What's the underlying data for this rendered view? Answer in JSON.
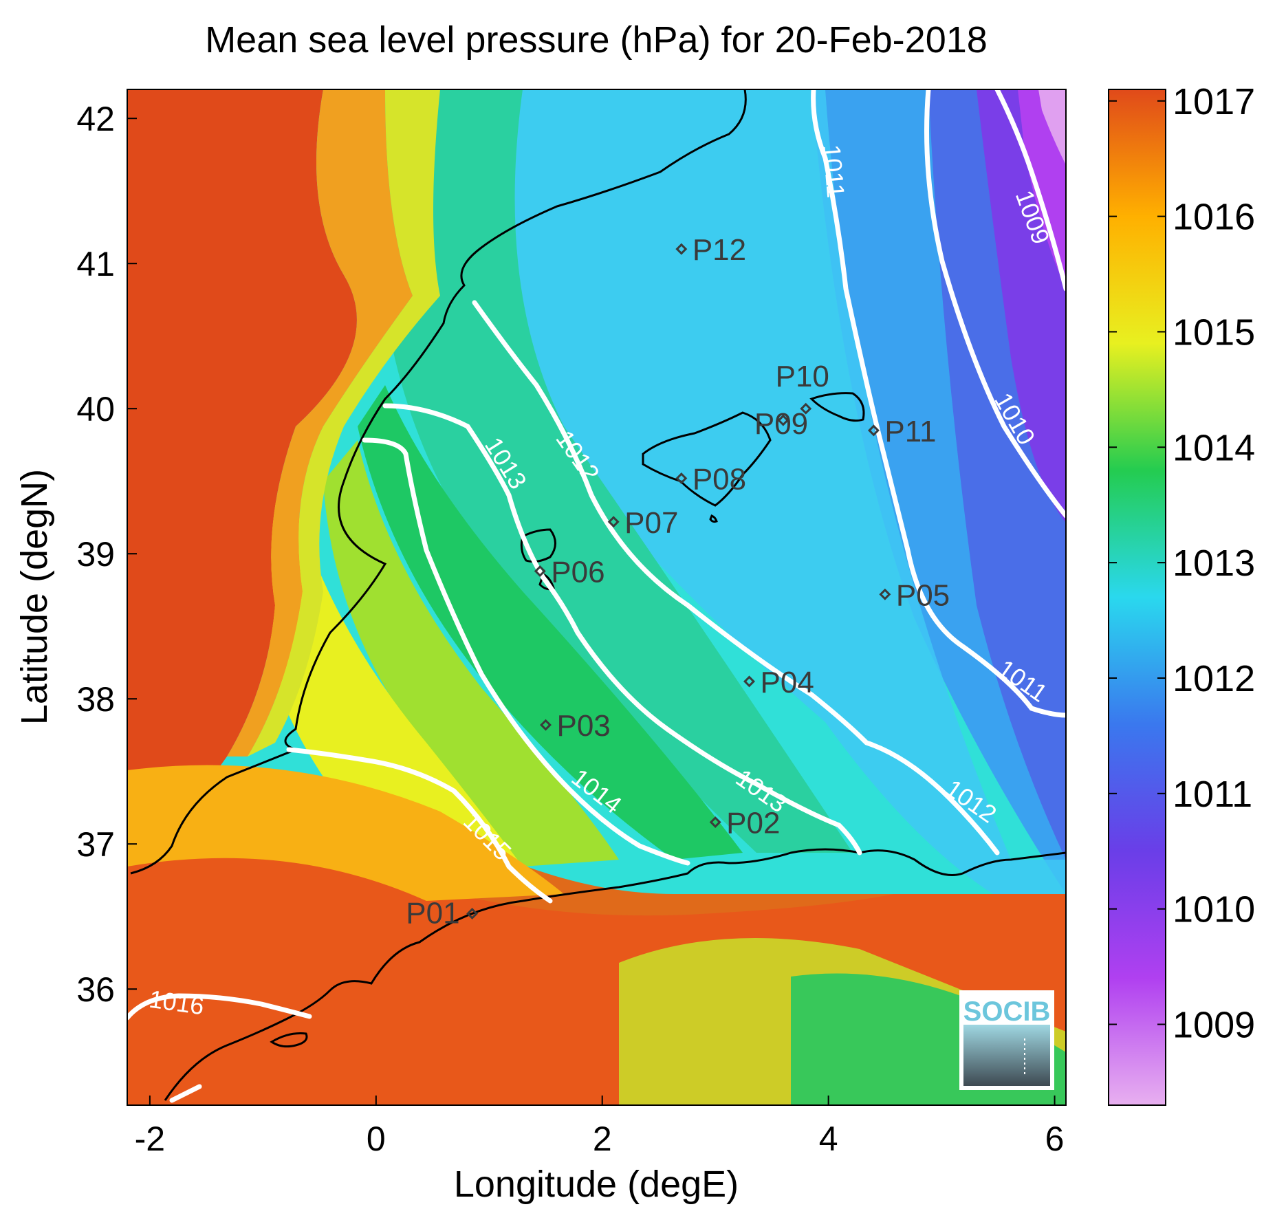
{
  "title": "Mean sea level pressure (hPa) for 20-Feb-2018",
  "x_axis": {
    "label": "Longitude (degE)",
    "ticks": [
      "-2",
      "0",
      "2",
      "4",
      "6"
    ]
  },
  "y_axis": {
    "label": "Latitude (degN)",
    "ticks": [
      "36",
      "37",
      "38",
      "39",
      "40",
      "41",
      "42"
    ]
  },
  "colorbar": {
    "ticks": [
      "1009",
      "1010",
      "1011",
      "1012",
      "1013",
      "1014",
      "1015",
      "1016",
      "1017"
    ],
    "range": [
      1008.3,
      1017.1
    ],
    "colors": [
      "#e8b0f0",
      "#b040f0",
      "#6a3ee8",
      "#3a78ee",
      "#2ad8ee",
      "#24cc50",
      "#e8f020",
      "#ffb000",
      "#e04a1a"
    ]
  },
  "chart_data": {
    "type": "heatmap",
    "variable": "Mean sea level pressure (hPa)",
    "date": "20-Feb-2018",
    "xlim": [
      -2.2,
      6.1
    ],
    "ylim": [
      35.2,
      42.2
    ],
    "contour_levels": [
      {
        "label": "1009"
      },
      {
        "label": "1010"
      },
      {
        "label": "1011"
      },
      {
        "label": "1012"
      },
      {
        "label": "1013"
      },
      {
        "label": "1014"
      },
      {
        "label": "1015"
      },
      {
        "label": "1016"
      }
    ],
    "points": [
      {
        "name": "P01",
        "lon": 0.85,
        "lat": 36.52
      },
      {
        "name": "P02",
        "lon": 3.0,
        "lat": 37.15
      },
      {
        "name": "P03",
        "lon": 1.5,
        "lat": 37.82
      },
      {
        "name": "P04",
        "lon": 3.3,
        "lat": 38.12
      },
      {
        "name": "P05",
        "lon": 4.5,
        "lat": 38.72
      },
      {
        "name": "P06",
        "lon": 1.45,
        "lat": 38.88
      },
      {
        "name": "P07",
        "lon": 2.1,
        "lat": 39.22
      },
      {
        "name": "P08",
        "lon": 2.7,
        "lat": 39.52
      },
      {
        "name": "P09",
        "lon": 3.6,
        "lat": 39.92
      },
      {
        "name": "P10",
        "lon": 3.8,
        "lat": 40.0
      },
      {
        "name": "P11",
        "lon": 4.4,
        "lat": 39.85
      },
      {
        "name": "P12",
        "lon": 2.7,
        "lat": 41.1
      }
    ]
  },
  "logo": {
    "text": "SOCIB"
  }
}
